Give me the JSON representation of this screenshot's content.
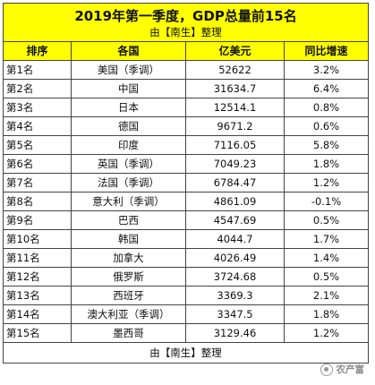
{
  "title": "2019年第一季度，GDP总量前15名",
  "subtitle": "由【南生】整理",
  "footer": "由【南生】整理",
  "watermark": "农产富",
  "colors": {
    "header_bg": "#ffff00",
    "border": "#444444"
  },
  "columns": [
    "排序",
    "各国",
    "亿美元",
    "同比增速"
  ],
  "rows": [
    {
      "rank": "第1名",
      "country": "美国（季调）",
      "gdp": "52622",
      "growth": "3.2%"
    },
    {
      "rank": "第2名",
      "country": "中国",
      "gdp": "31634.7",
      "growth": "6.4%"
    },
    {
      "rank": "第3名",
      "country": "日本",
      "gdp": "12514.1",
      "growth": "0.8%"
    },
    {
      "rank": "第4名",
      "country": "德国",
      "gdp": "9671.2",
      "growth": "0.6%"
    },
    {
      "rank": "第5名",
      "country": "印度",
      "gdp": "7116.05",
      "growth": "5.8%"
    },
    {
      "rank": "第6名",
      "country": "英国（季调）",
      "gdp": "7049.23",
      "growth": "1.8%"
    },
    {
      "rank": "第7名",
      "country": "法国（季调）",
      "gdp": "6784.47",
      "growth": "1.2%"
    },
    {
      "rank": "第8名",
      "country": "意大利（季调）",
      "gdp": "4861.09",
      "growth": "-0.1%"
    },
    {
      "rank": "第9名",
      "country": "巴西",
      "gdp": "4547.69",
      "growth": "0.5%"
    },
    {
      "rank": "第10名",
      "country": "韩国",
      "gdp": "4044.7",
      "growth": "1.7%"
    },
    {
      "rank": "第11名",
      "country": "加拿大",
      "gdp": "4026.49",
      "growth": "1.4%"
    },
    {
      "rank": "第12名",
      "country": "俄罗斯",
      "gdp": "3724.68",
      "growth": "0.5%"
    },
    {
      "rank": "第13名",
      "country": "西班牙",
      "gdp": "3369.3",
      "growth": "2.1%"
    },
    {
      "rank": "第14名",
      "country": "澳大利亚（季调）",
      "gdp": "3347.5",
      "growth": "1.8%"
    },
    {
      "rank": "第15名",
      "country": "墨西哥",
      "gdp": "3129.46",
      "growth": "1.2%"
    }
  ]
}
